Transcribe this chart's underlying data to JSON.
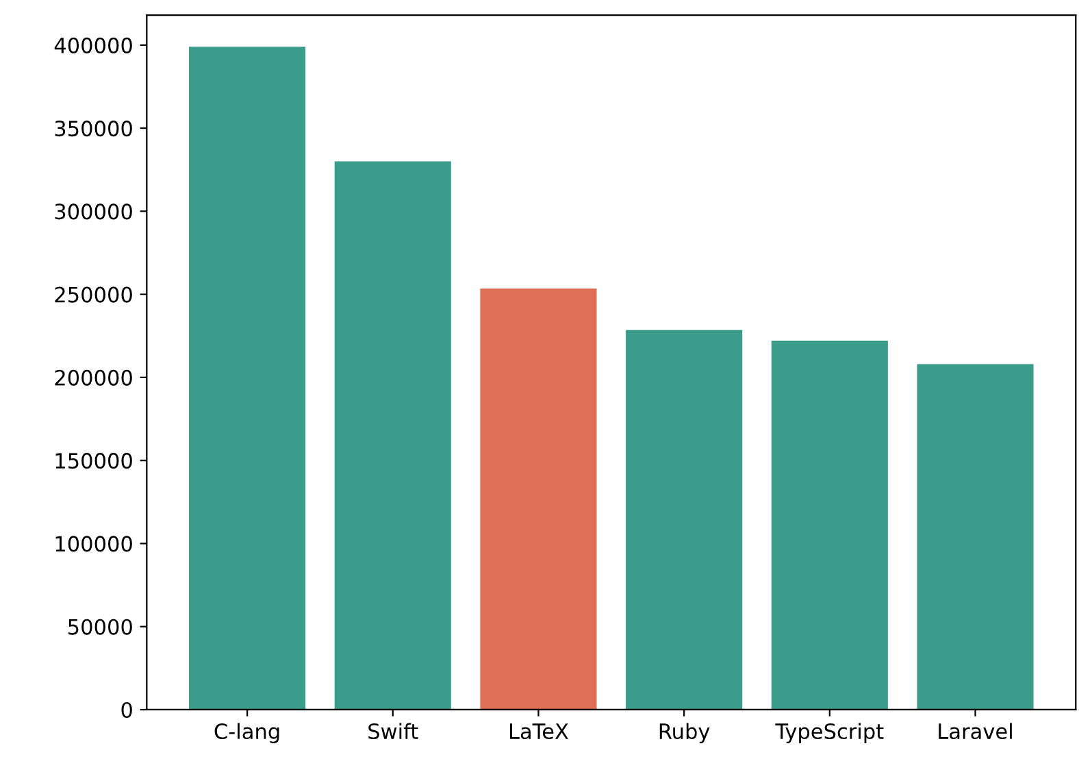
{
  "chart_data": {
    "type": "bar",
    "categories": [
      "C-lang",
      "Swift",
      "LaTeX",
      "Ruby",
      "TypeScript",
      "Laravel"
    ],
    "values": [
      399000,
      330000,
      253500,
      228500,
      222000,
      208000
    ],
    "colors": [
      "#3c9c8c",
      "#3c9c8c",
      "#e07055",
      "#3c9c8c",
      "#3c9c8c",
      "#3c9c8c"
    ],
    "ylim": [
      0,
      418000
    ],
    "yticks": [
      0,
      50000,
      100000,
      150000,
      200000,
      250000,
      300000,
      350000,
      400000
    ],
    "grid": false
  }
}
